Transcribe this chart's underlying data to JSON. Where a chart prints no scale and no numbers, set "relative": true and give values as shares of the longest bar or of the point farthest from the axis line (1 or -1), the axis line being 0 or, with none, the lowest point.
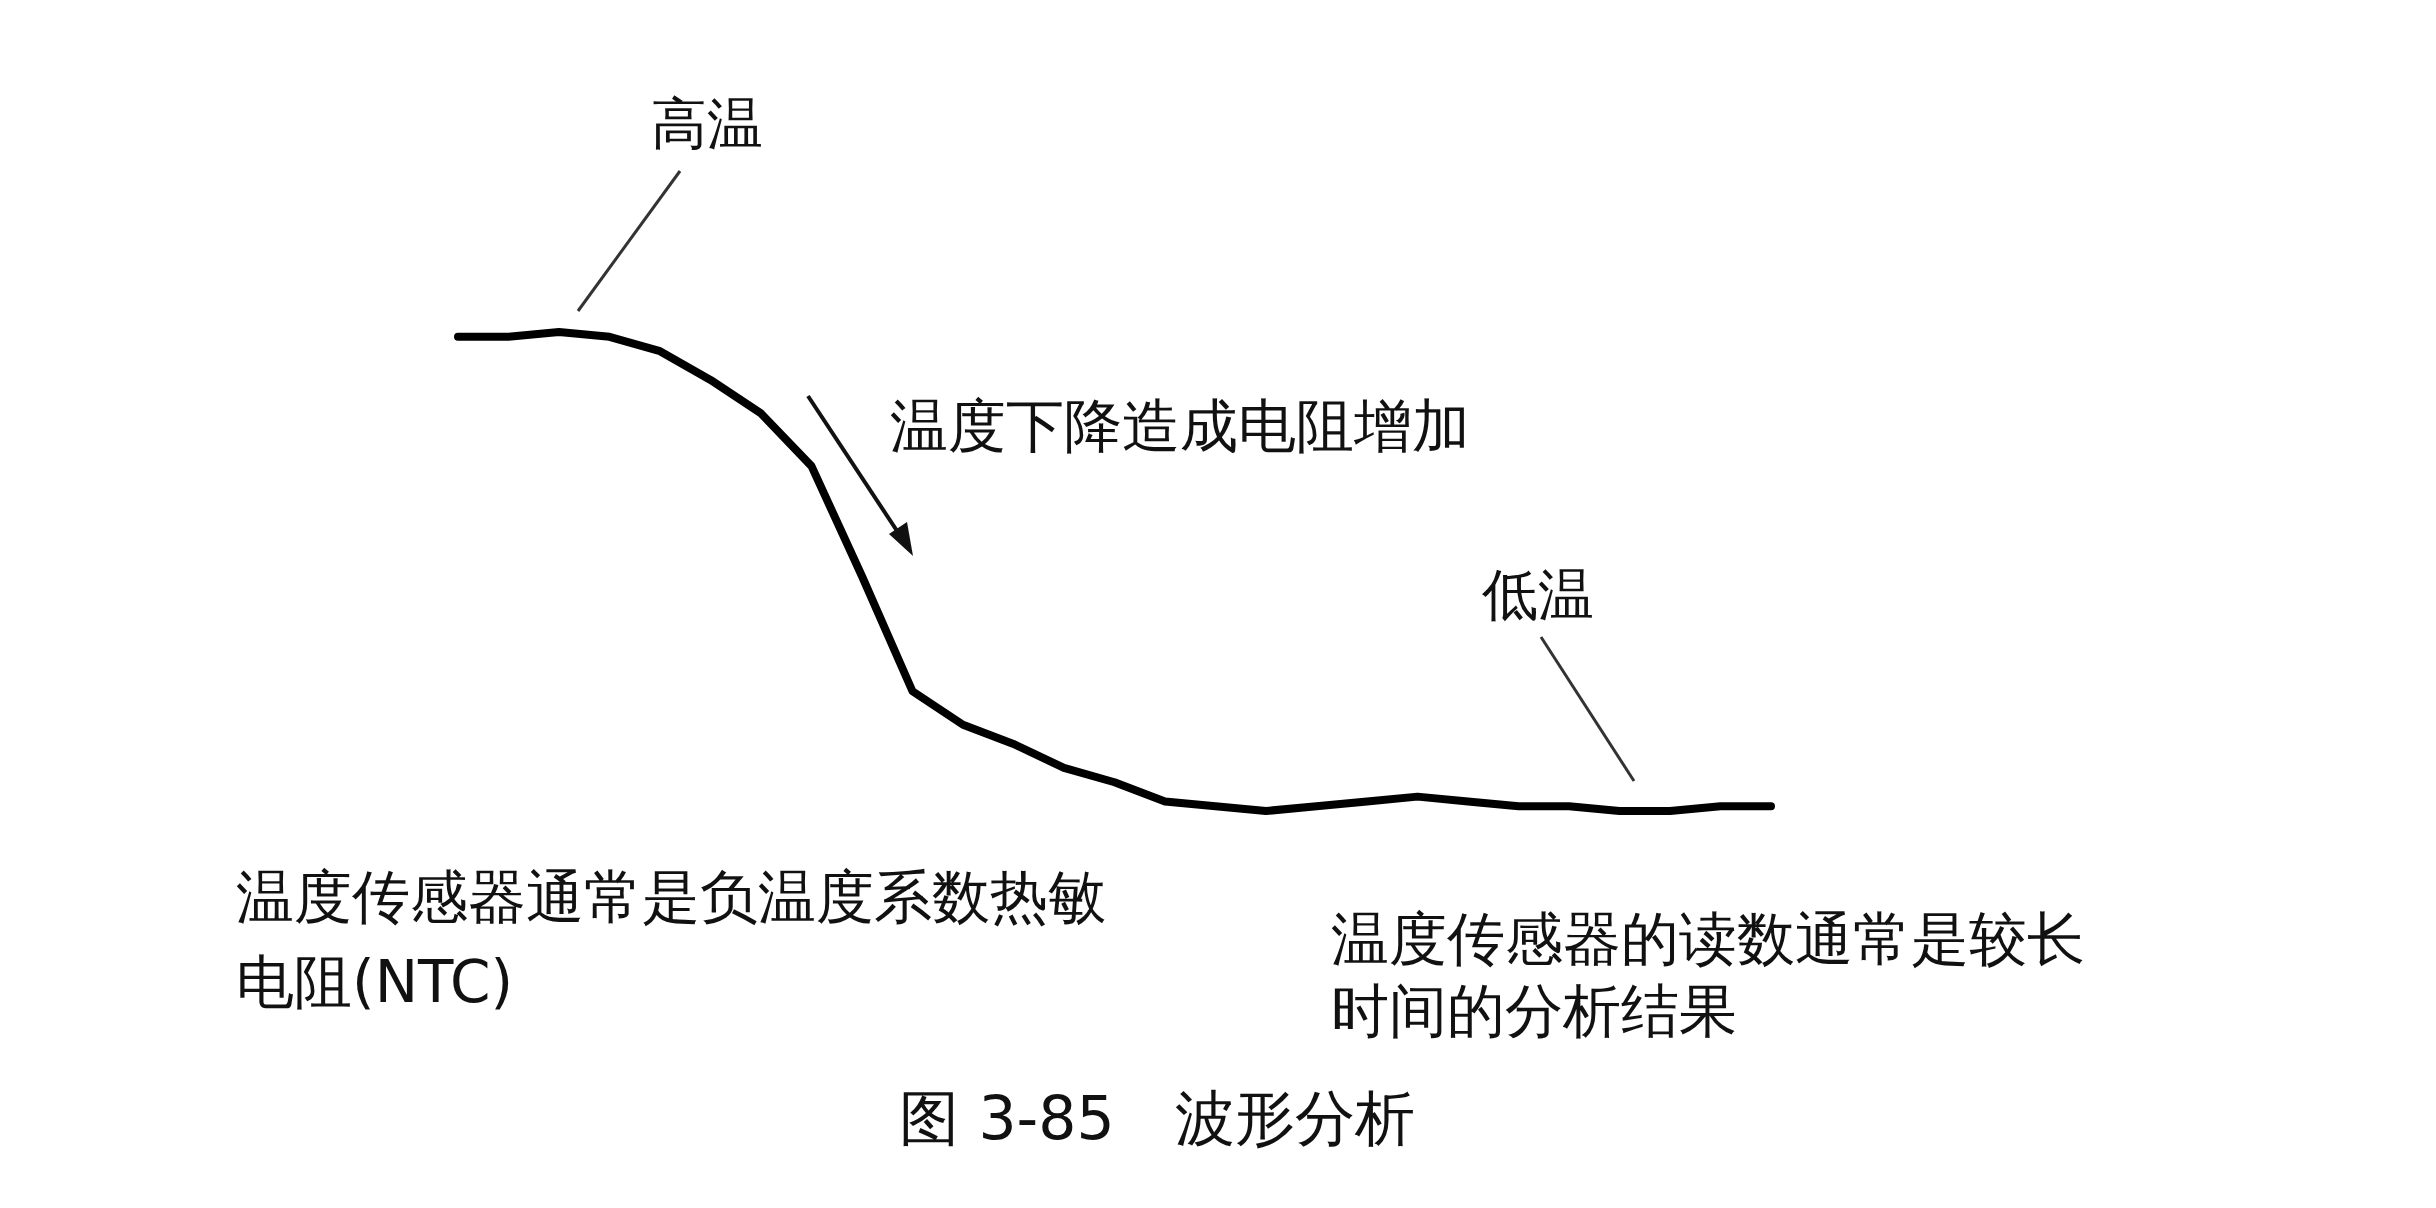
{
  "chart_data": {
    "type": "line",
    "relative": true,
    "title": "图 3-85　波形分析",
    "categories": [
      null,
      null,
      null,
      null,
      null,
      null,
      null,
      null,
      null,
      null,
      null,
      null,
      null,
      null,
      null,
      null,
      null,
      null,
      null,
      null,
      null,
      null,
      null,
      null,
      null,
      null,
      null
    ],
    "series": [
      {
        "color": "#000000",
        "values": [
          0.99,
          0.99,
          1.0,
          0.99,
          0.96,
          0.9,
          0.83,
          0.72,
          0.49,
          0.25,
          0.18,
          0.14,
          0.09,
          0.06,
          0.02,
          0.01,
          0,
          0.01,
          0.02,
          0.03,
          0.02,
          0.01,
          0.01,
          0,
          0,
          0.01,
          0.01
        ]
      }
    ],
    "annotations": [
      "高温",
      "温度下降造成电阻增加",
      "低温",
      "温度传感器通常是负温度系数热敏电阻(NTC)",
      "温度传感器的读数通常是较长时间的分析结果"
    ],
    "grid": false,
    "marker": "none",
    "line_style": "solid"
  }
}
